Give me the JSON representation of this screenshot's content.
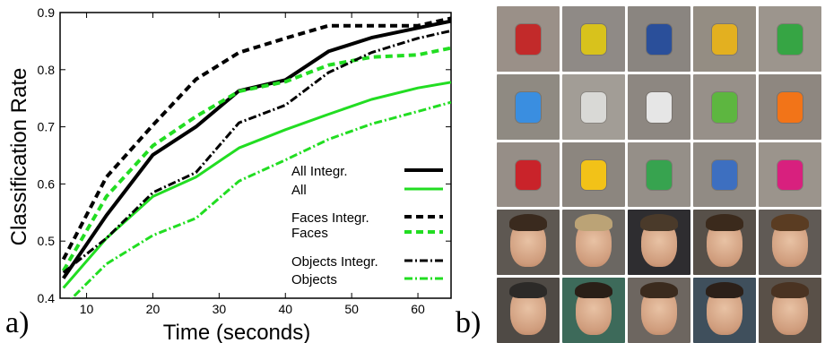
{
  "panel_labels": {
    "a": "a)",
    "b": "b)"
  },
  "chart_data": {
    "type": "line",
    "xlabel": "Time (seconds)",
    "ylabel": "Classification Rate",
    "xlim": [
      6,
      65
    ],
    "ylim": [
      0.4,
      0.9
    ],
    "xticks": [
      10,
      20,
      30,
      40,
      50,
      60
    ],
    "yticks": [
      0.4,
      0.5,
      0.6,
      0.7,
      0.8,
      0.9
    ],
    "legend_position": "bottom-right",
    "grid": false,
    "series": [
      {
        "name": "All Integr.",
        "color": "#000000",
        "style": "solid",
        "width": 4,
        "x": [
          6.5,
          13,
          20,
          26.5,
          33,
          40,
          46.5,
          53,
          60,
          65
        ],
        "y": [
          0.435,
          0.545,
          0.651,
          0.7,
          0.763,
          0.782,
          0.832,
          0.856,
          0.873,
          0.885
        ]
      },
      {
        "name": "All",
        "color": "#22dd22",
        "style": "solid",
        "width": 3,
        "x": [
          6.5,
          13,
          20,
          26.5,
          33,
          40,
          46.5,
          53,
          60,
          65
        ],
        "y": [
          0.418,
          0.505,
          0.578,
          0.612,
          0.663,
          0.695,
          0.722,
          0.748,
          0.768,
          0.778
        ]
      },
      {
        "name": "Faces Integr.",
        "color": "#000000",
        "style": "dashed",
        "width": 4,
        "x": [
          6.5,
          13,
          20,
          26.5,
          33,
          40,
          46.5,
          53,
          60,
          65
        ],
        "y": [
          0.468,
          0.612,
          0.703,
          0.783,
          0.83,
          0.855,
          0.877,
          0.877,
          0.877,
          0.89
        ]
      },
      {
        "name": "Faces",
        "color": "#22dd22",
        "style": "dashed",
        "width": 4,
        "x": [
          6.5,
          13,
          20,
          26.5,
          33,
          40,
          46.5,
          53,
          60,
          65
        ],
        "y": [
          0.448,
          0.578,
          0.667,
          0.718,
          0.762,
          0.779,
          0.808,
          0.822,
          0.826,
          0.838
        ]
      },
      {
        "name": "Objects Integr.",
        "color": "#000000",
        "style": "dashdot",
        "width": 3,
        "x": [
          6.5,
          13,
          20,
          26.5,
          33,
          40,
          46.5,
          53,
          60,
          65
        ],
        "y": [
          0.445,
          0.505,
          0.585,
          0.62,
          0.707,
          0.738,
          0.795,
          0.83,
          0.855,
          0.868
        ]
      },
      {
        "name": "Objects",
        "color": "#22dd22",
        "style": "dashdot",
        "width": 3,
        "x": [
          6.5,
          13,
          20,
          26.5,
          33,
          40,
          46.5,
          53,
          60,
          65
        ],
        "y": [
          0.385,
          0.46,
          0.51,
          0.54,
          0.605,
          0.642,
          0.678,
          0.705,
          0.727,
          0.743
        ]
      }
    ]
  },
  "image_grid": {
    "rows": 5,
    "cols": 5,
    "tiles": [
      {
        "kind": "object",
        "bg": "#9a9088",
        "obj": "#c22a2a"
      },
      {
        "kind": "object",
        "bg": "#8f8a86",
        "obj": "#d8c21c"
      },
      {
        "kind": "object",
        "bg": "#8a8580",
        "obj": "#2a4f9a"
      },
      {
        "kind": "object",
        "bg": "#948d83",
        "obj": "#e3b020"
      },
      {
        "kind": "object",
        "bg": "#9c958d",
        "obj": "#36a544"
      },
      {
        "kind": "object",
        "bg": "#8f8a82",
        "obj": "#3a8ee0"
      },
      {
        "kind": "object",
        "bg": "#a29d96",
        "obj": "#d9d9d6"
      },
      {
        "kind": "object",
        "bg": "#8d8781",
        "obj": "#e6e6e6"
      },
      {
        "kind": "object",
        "bg": "#979089",
        "obj": "#5db640"
      },
      {
        "kind": "object",
        "bg": "#8e8780",
        "obj": "#f27418"
      },
      {
        "kind": "object",
        "bg": "#968e87",
        "obj": "#c9232a"
      },
      {
        "kind": "object",
        "bg": "#8c867f",
        "obj": "#f2c218"
      },
      {
        "kind": "object",
        "bg": "#958f88",
        "obj": "#37a34f"
      },
      {
        "kind": "object",
        "bg": "#918b84",
        "obj": "#3d6fc0"
      },
      {
        "kind": "object",
        "bg": "#9b948c",
        "obj": "#d8207e"
      },
      {
        "kind": "face",
        "bg": "#5e5852",
        "hair": "#3a2a1e"
      },
      {
        "kind": "face",
        "bg": "#6b6762",
        "hair": "#bba376"
      },
      {
        "kind": "face",
        "bg": "#2e2d30",
        "hair": "#4a3a2a"
      },
      {
        "kind": "face",
        "bg": "#575049",
        "hair": "#3b2a1c"
      },
      {
        "kind": "face",
        "bg": "#605a55",
        "hair": "#5a3c22"
      },
      {
        "kind": "face",
        "bg": "#4f4a45",
        "hair": "#2c2a28"
      },
      {
        "kind": "face",
        "bg": "#3d6a5a",
        "hair": "#2a1f17"
      },
      {
        "kind": "face",
        "bg": "#6d6660",
        "hair": "#3b2b1e"
      },
      {
        "kind": "face",
        "bg": "#3f4f5c",
        "hair": "#2c2019"
      },
      {
        "kind": "face",
        "bg": "#595048",
        "hair": "#4a3322"
      }
    ]
  }
}
